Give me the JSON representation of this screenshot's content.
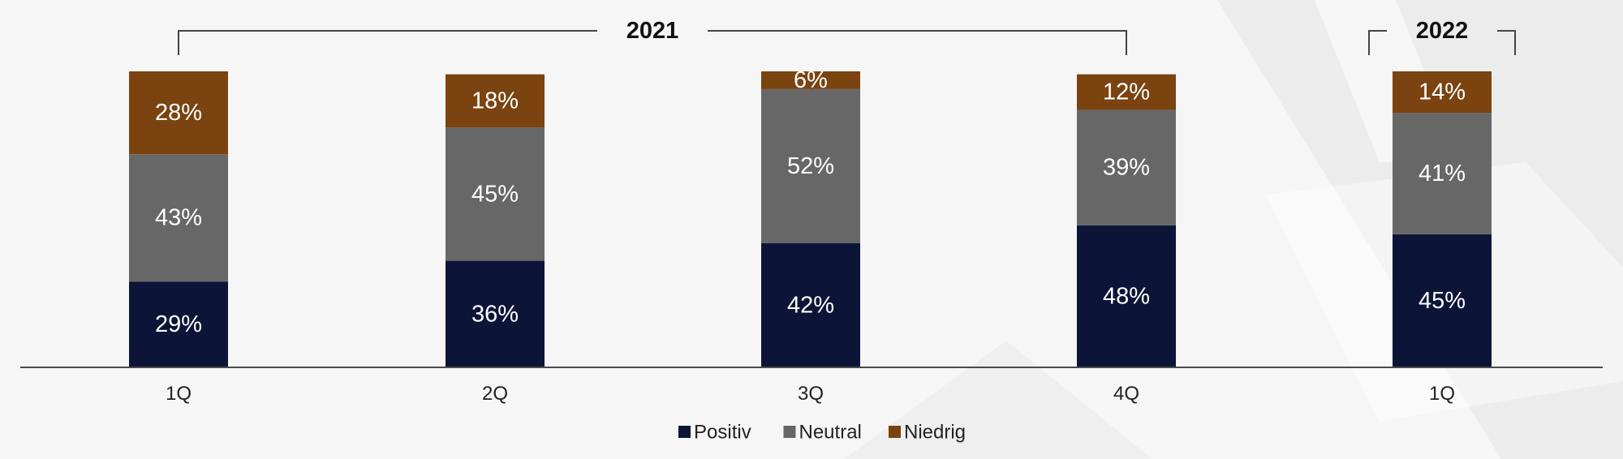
{
  "chart_data": {
    "type": "bar",
    "stacked": true,
    "categories": [
      "1Q",
      "2Q",
      "3Q",
      "4Q",
      "1Q"
    ],
    "series": [
      {
        "name": "Positiv",
        "color": "#0c1538",
        "values": [
          29,
          36,
          42,
          48,
          45
        ]
      },
      {
        "name": "Neutral",
        "color": "#676767",
        "values": [
          43,
          45,
          52,
          39,
          41
        ]
      },
      {
        "name": "Niedrig",
        "color": "#7a4310",
        "values": [
          28,
          18,
          6,
          12,
          14
        ]
      }
    ],
    "data_labels": [
      [
        "29%",
        "36%",
        "42%",
        "48%",
        "45%"
      ],
      [
        "43%",
        "45%",
        "52%",
        "39%",
        "41%"
      ],
      [
        "28%",
        "18%",
        "6%",
        "12%",
        "14%"
      ]
    ],
    "groups": [
      {
        "label": "2021",
        "categories": [
          0,
          1,
          2,
          3
        ]
      },
      {
        "label": "2022",
        "categories": [
          4
        ]
      }
    ],
    "ylim": [
      0,
      100
    ],
    "grid": false,
    "legend": "bottom-center",
    "colors": {
      "background": "#f6f6f6",
      "text": "#222222",
      "axis": "#4a4a4a"
    }
  }
}
